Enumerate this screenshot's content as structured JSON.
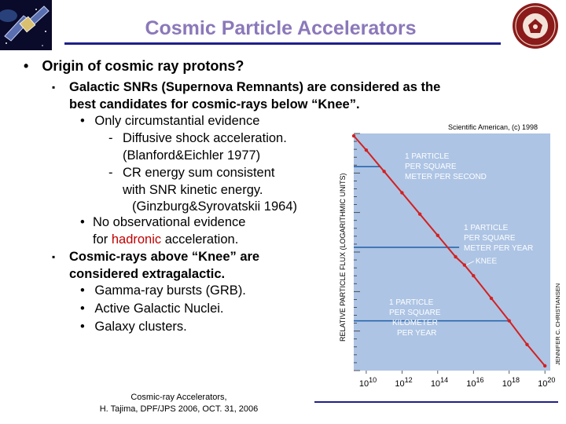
{
  "slide": {
    "title": "Cosmic Particle Accelerators",
    "bullets": {
      "main": "Origin of cosmic ray protons?",
      "galactic_1": "Galactic SNRs (Supernova Remnants) are considered as the",
      "galactic_2": "best candidates for cosmic-rays below “Knee”.",
      "circumstantial": "Only circumstantial evidence",
      "diffusive_1": "Diffusive shock acceleration.",
      "diffusive_2": "(Blanford&Eichler 1977)",
      "cr_energy_1": "CR energy sum consistent",
      "cr_energy_2": "with SNR kinetic energy.",
      "cr_energy_3": "(Ginzburg&Syrovatskii 1964)",
      "no_obs_1": "No observational evidence",
      "no_obs_2a": "for ",
      "no_obs_2b": "hadronic",
      "no_obs_2c": " acceleration.",
      "above_knee_1": "Cosmic-rays above “Knee” are",
      "above_knee_2": "considered extragalactic.",
      "grb": "Gamma-ray bursts (GRB).",
      "agn": "Active Galactic Nuclei.",
      "clusters": "Galaxy clusters."
    },
    "footer": {
      "line1": "Cosmic-ray Accelerators,",
      "line2": "H. Tajima, DPF/JPS 2006, OCT. 31, 2006"
    }
  },
  "chart_data": {
    "type": "line",
    "title": "",
    "source": "Scientific American, (c) 1998",
    "credit": "JENNIFER C. CHRISTIANSEN",
    "ylabel": "RELATIVE PARTICLE FLUX (LOGARITHMIC UNITS)",
    "x_scale": "log",
    "x_ticks": [
      {
        "base": "10",
        "exp": "10"
      },
      {
        "base": "10",
        "exp": "12"
      },
      {
        "base": "10",
        "exp": "14"
      },
      {
        "base": "10",
        "exp": "16"
      },
      {
        "base": "10",
        "exp": "18"
      },
      {
        "base": "10",
        "exp": "20"
      }
    ],
    "xlim": [
      9.3,
      20.3
    ],
    "ylim": [
      0,
      1
    ],
    "series_spectrum": [
      [
        9.3,
        0.99
      ],
      [
        10,
        0.93
      ],
      [
        11,
        0.84
      ],
      [
        12,
        0.75
      ],
      [
        13,
        0.66
      ],
      [
        14,
        0.57
      ],
      [
        15,
        0.48
      ],
      [
        15.5,
        0.445
      ],
      [
        16,
        0.4
      ],
      [
        17,
        0.305
      ],
      [
        18,
        0.21
      ],
      [
        19,
        0.11
      ],
      [
        20,
        0.02
      ]
    ],
    "reference_levels": [
      {
        "y": 0.86,
        "x_end": 10.8,
        "label": [
          "1 PARTICLE",
          "PER SQUARE",
          "METER PER SECOND"
        ]
      },
      {
        "y": 0.52,
        "x_end": 15.2,
        "label": [
          "1 PARTICLE",
          "PER SQUARE",
          "METER PER YEAR"
        ]
      },
      {
        "y": 0.21,
        "x_end": 18.0,
        "label": [
          "1 PARTICLE",
          "PER SQUARE",
          "KILOMETER",
          "PER YEAR"
        ]
      }
    ],
    "annotations": [
      {
        "text": "KNEE",
        "x": 15.5,
        "y": 0.445
      }
    ],
    "colors": {
      "background": "#adc4e4",
      "spectrum": "#d42020",
      "levels": "#1f5fa8",
      "annotation_text": "#ffffff"
    }
  }
}
